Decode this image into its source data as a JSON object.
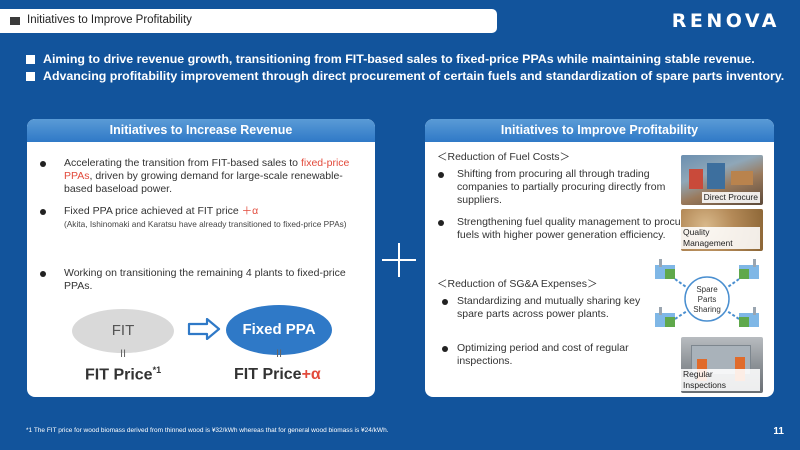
{
  "header": {
    "title": "Initiatives to Improve Profitability",
    "logo": "RENOVA"
  },
  "summary": [
    "Aiming to drive revenue growth, transitioning from FIT-based sales to fixed-price PPAs while maintaining stable revenue.",
    "Advancing profitability improvement through direct procurement of certain fuels and standardization of spare parts inventory."
  ],
  "revenue": {
    "title": "Initiatives to Increase Revenue",
    "b1_pre": "Accelerating the transition from FIT-based sales to ",
    "b1_red": "fixed-price PPAs",
    "b1_post": ", driven by growing demand for large-scale renewable-based baseload power.",
    "b2_main": "Fixed PPA price achieved at FIT price ",
    "b2_red": "＋α",
    "b2_note": "(Akita, Ishinomaki and Karatsu have already transitioned to fixed-price PPAs)",
    "b3": "Working on transitioning the remaining 4 plants to fixed-price PPAs.",
    "fit_label": "FIT",
    "ppa_label": "Fixed PPA",
    "eq": "II",
    "fit_price": "FIT Price",
    "fit_price_sup": "*1",
    "ppa_price": "FIT Price",
    "ppa_price_red": "+α"
  },
  "profit": {
    "title": "Initiatives to Improve Profitability",
    "fuel_heading": "＜Reduction of Fuel Costs＞",
    "fuel_b1": "Shifting from procuring all through trading companies to partially procuring directly from suppliers.",
    "fuel_b2": "Strengthening fuel quality management to procure fuels with higher power generation efficiency.",
    "sga_heading": "＜Reduction of SG&A Expenses＞",
    "sga_b1": "Standardizing and mutually sharing key spare parts across power plants.",
    "sga_b2": "Optimizing period and cost of regular inspections.",
    "img_direct": "Direct Procure",
    "img_quality": "Quality Management",
    "img_inspect": "Regular Inspections",
    "spare": [
      "Spare",
      "Parts",
      "Sharing"
    ]
  },
  "footnote": "*1 The FIT price for wood biomass derived from thinned wood is ¥32/kWh whereas that for general wood biomass is ¥24/kWh.",
  "page_number": "11",
  "colors": {
    "background": "#12549c",
    "panel_header": "#2f79c7",
    "accent_red": "#e24a3b"
  }
}
